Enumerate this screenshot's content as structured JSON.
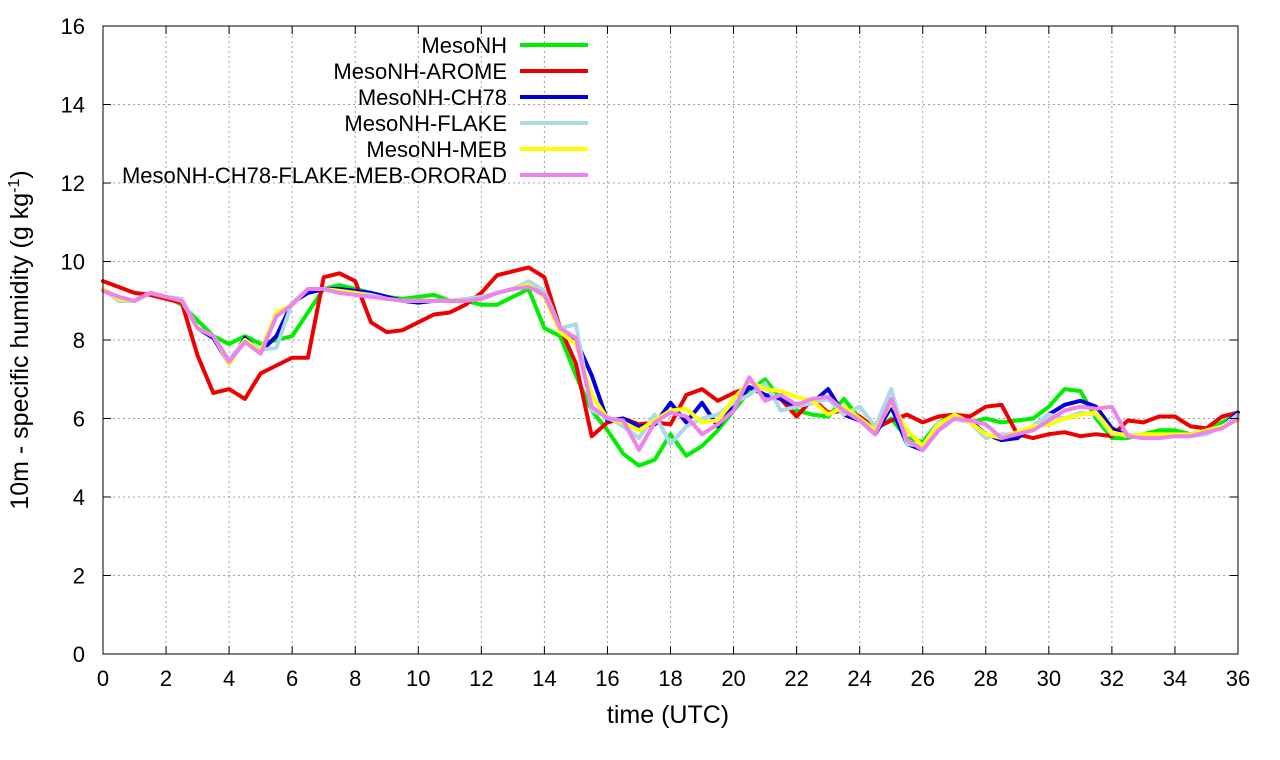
{
  "chart_data": {
    "type": "line",
    "title": "",
    "xlabel": "time (UTC)",
    "ylabel_main": "10m - specific humidity (g kg",
    "ylabel_sup": "-1",
    "ylabel_close": ")",
    "xlim": [
      0,
      36
    ],
    "ylim": [
      0,
      16
    ],
    "xticks": [
      0,
      2,
      4,
      6,
      8,
      10,
      12,
      14,
      16,
      18,
      20,
      22,
      24,
      26,
      28,
      30,
      32,
      34,
      36
    ],
    "yticks": [
      0,
      2,
      4,
      6,
      8,
      10,
      12,
      14,
      16
    ],
    "grid": true,
    "legend_position": "top-left",
    "series": [
      {
        "name": "MesoNH",
        "color": "#00ee00",
        "x": [
          0,
          0.5,
          1,
          1.5,
          2,
          2.5,
          3,
          3.5,
          4,
          4.5,
          5,
          5.5,
          6,
          6.5,
          7,
          7.5,
          8,
          8.5,
          9,
          9.5,
          10,
          10.5,
          11,
          11.5,
          12,
          12.5,
          13,
          13.5,
          14,
          14.5,
          15,
          15.5,
          16,
          16.5,
          17,
          17.5,
          18,
          18.5,
          19,
          19.5,
          20,
          20.5,
          21,
          21.5,
          22,
          22.5,
          23,
          23.5,
          24,
          24.5,
          25,
          25.5,
          26,
          26.5,
          27,
          27.5,
          28,
          28.5,
          29,
          29.5,
          30,
          30.5,
          31,
          31.5,
          32,
          32.5,
          33,
          33.5,
          34,
          34.5,
          35,
          35.5,
          36
        ],
        "values": [
          9.3,
          9.0,
          9.0,
          9.2,
          9.1,
          8.9,
          8.5,
          8.1,
          7.9,
          8.1,
          7.9,
          8.0,
          8.1,
          8.7,
          9.3,
          9.4,
          9.3,
          9.2,
          9.1,
          9.05,
          9.1,
          9.15,
          9.0,
          9.0,
          8.9,
          8.9,
          9.1,
          9.3,
          8.3,
          8.1,
          7.1,
          6.2,
          5.7,
          5.1,
          4.8,
          4.95,
          5.6,
          5.05,
          5.3,
          5.7,
          6.2,
          6.7,
          7.0,
          6.5,
          6.2,
          6.1,
          6.05,
          6.5,
          6.0,
          5.7,
          6.0,
          5.5,
          5.4,
          5.9,
          6.1,
          5.9,
          6.0,
          5.9,
          5.95,
          6.0,
          6.3,
          6.75,
          6.7,
          6.0,
          5.5,
          5.5,
          5.6,
          5.7,
          5.7,
          5.6,
          5.7,
          5.9,
          6.1
        ]
      },
      {
        "name": "MesoNH-AROME",
        "color": "#ee0000",
        "x": [
          0,
          0.5,
          1,
          1.5,
          2,
          2.5,
          3,
          3.5,
          4,
          4.5,
          5,
          5.5,
          6,
          6.5,
          7,
          7.5,
          8,
          8.5,
          9,
          9.5,
          10,
          10.5,
          11,
          11.5,
          12,
          12.5,
          13,
          13.5,
          14,
          14.5,
          15,
          15.5,
          16,
          16.5,
          17,
          17.5,
          18,
          18.5,
          19,
          19.5,
          20,
          20.5,
          21,
          21.5,
          22,
          22.5,
          23,
          23.5,
          24,
          24.5,
          25,
          25.5,
          26,
          26.5,
          27,
          27.5,
          28,
          28.5,
          29,
          29.5,
          30,
          30.5,
          31,
          31.5,
          32,
          32.5,
          33,
          33.5,
          34,
          34.5,
          35,
          35.5,
          36
        ],
        "values": [
          9.5,
          9.35,
          9.2,
          9.15,
          9.05,
          8.95,
          7.6,
          6.65,
          6.75,
          6.5,
          7.15,
          7.35,
          7.55,
          7.55,
          9.6,
          9.7,
          9.5,
          8.45,
          8.2,
          8.25,
          8.45,
          8.65,
          8.7,
          8.9,
          9.2,
          9.65,
          9.75,
          9.85,
          9.6,
          8.3,
          7.4,
          5.55,
          5.9,
          6.0,
          5.85,
          5.9,
          5.85,
          6.6,
          6.75,
          6.45,
          6.65,
          6.8,
          6.6,
          6.5,
          6.05,
          6.5,
          6.15,
          6.2,
          6.05,
          5.75,
          5.95,
          6.1,
          5.9,
          6.05,
          6.1,
          6.05,
          6.3,
          6.35,
          5.6,
          5.5,
          5.6,
          5.65,
          5.55,
          5.6,
          5.55,
          5.95,
          5.9,
          6.05,
          6.05,
          5.8,
          5.75,
          6.05,
          6.15
        ]
      },
      {
        "name": "MesoNH-CH78",
        "color": "#0000dd",
        "x": [
          0,
          0.5,
          1,
          1.5,
          2,
          2.5,
          3,
          3.5,
          4,
          4.5,
          5,
          5.5,
          6,
          6.5,
          7,
          7.5,
          8,
          8.5,
          9,
          9.5,
          10,
          10.5,
          11,
          11.5,
          12,
          12.5,
          13,
          13.5,
          14,
          14.5,
          15,
          15.5,
          16,
          16.5,
          17,
          17.5,
          18,
          18.5,
          19,
          19.5,
          20,
          20.5,
          21,
          21.5,
          22,
          22.5,
          23,
          23.5,
          24,
          24.5,
          25,
          25.5,
          26,
          26.5,
          27,
          27.5,
          28,
          28.5,
          29,
          29.5,
          30,
          30.5,
          31,
          31.5,
          32,
          32.5,
          33,
          33.5,
          34,
          34.5,
          35,
          35.5,
          36
        ],
        "values": [
          9.3,
          9.05,
          9.0,
          9.2,
          9.1,
          9.0,
          8.3,
          8.05,
          7.4,
          8.05,
          7.7,
          8.1,
          8.95,
          9.2,
          9.3,
          9.3,
          9.25,
          9.2,
          9.1,
          9.0,
          8.95,
          9.0,
          9.0,
          9.0,
          9.05,
          9.2,
          9.3,
          9.4,
          9.2,
          8.3,
          8.0,
          7.1,
          5.95,
          6.0,
          5.8,
          5.85,
          6.4,
          5.9,
          6.4,
          5.8,
          6.3,
          6.8,
          6.6,
          6.5,
          6.3,
          6.4,
          6.75,
          6.1,
          5.95,
          5.6,
          6.3,
          5.35,
          5.2,
          5.7,
          6.0,
          5.95,
          5.6,
          5.45,
          5.5,
          5.8,
          6.1,
          6.35,
          6.45,
          6.3,
          5.75,
          5.55,
          5.55,
          5.6,
          5.6,
          5.6,
          5.65,
          5.8,
          6.15
        ]
      },
      {
        "name": "MesoNH-FLAKE",
        "color": "#add8e6",
        "x": [
          0,
          0.5,
          1,
          1.5,
          2,
          2.5,
          3,
          3.5,
          4,
          4.5,
          5,
          5.5,
          6,
          6.5,
          7,
          7.5,
          8,
          8.5,
          9,
          9.5,
          10,
          10.5,
          11,
          11.5,
          12,
          12.5,
          13,
          13.5,
          14,
          14.5,
          15,
          15.5,
          16,
          16.5,
          17,
          17.5,
          18,
          18.5,
          19,
          19.5,
          20,
          20.5,
          21,
          21.5,
          22,
          22.5,
          23,
          23.5,
          24,
          24.5,
          25,
          25.5,
          26,
          26.5,
          27,
          27.5,
          28,
          28.5,
          29,
          29.5,
          30,
          30.5,
          31,
          31.5,
          32,
          32.5,
          33,
          33.5,
          34,
          34.5,
          35,
          35.5,
          36
        ],
        "values": [
          9.3,
          9.0,
          9.0,
          9.2,
          9.1,
          9.05,
          8.3,
          8.1,
          7.5,
          8.0,
          7.75,
          7.8,
          8.95,
          9.3,
          9.3,
          9.25,
          9.2,
          9.15,
          9.05,
          9.0,
          9.0,
          9.0,
          9.0,
          9.05,
          9.1,
          9.2,
          9.3,
          9.5,
          9.25,
          8.3,
          8.4,
          6.2,
          6.05,
          5.8,
          5.5,
          6.1,
          5.35,
          5.8,
          6.0,
          6.1,
          6.4,
          6.6,
          6.9,
          6.2,
          6.3,
          6.4,
          6.5,
          6.1,
          6.3,
          5.8,
          6.75,
          5.35,
          5.3,
          5.9,
          6.0,
          5.9,
          5.5,
          5.6,
          5.6,
          5.8,
          6.1,
          6.0,
          6.15,
          6.1,
          5.6,
          5.6,
          5.55,
          5.6,
          5.55,
          5.55,
          5.6,
          5.8,
          6.1
        ]
      },
      {
        "name": "MesoNH-MEB",
        "color": "#ffff00",
        "x": [
          0,
          0.5,
          1,
          1.5,
          2,
          2.5,
          3,
          3.5,
          4,
          4.5,
          5,
          5.5,
          6,
          6.5,
          7,
          7.5,
          8,
          8.5,
          9,
          9.5,
          10,
          10.5,
          11,
          11.5,
          12,
          12.5,
          13,
          13.5,
          14,
          14.5,
          15,
          15.5,
          16,
          16.5,
          17,
          17.5,
          18,
          18.5,
          19,
          19.5,
          20,
          20.5,
          21,
          21.5,
          22,
          22.5,
          23,
          23.5,
          24,
          24.5,
          25,
          25.5,
          26,
          26.5,
          27,
          27.5,
          28,
          28.5,
          29,
          29.5,
          30,
          30.5,
          31,
          31.5,
          32,
          32.5,
          33,
          33.5,
          34,
          34.5,
          35,
          35.5,
          36
        ],
        "values": [
          9.3,
          9.05,
          9.0,
          9.2,
          9.1,
          9.0,
          8.3,
          8.1,
          7.4,
          8.0,
          7.7,
          8.7,
          8.9,
          9.3,
          9.3,
          9.25,
          9.2,
          9.1,
          9.05,
          9.0,
          9.0,
          9.0,
          9.0,
          9.0,
          9.05,
          9.2,
          9.3,
          9.4,
          9.1,
          8.2,
          7.9,
          6.6,
          6.0,
          5.9,
          5.7,
          5.95,
          6.2,
          6.25,
          5.9,
          5.95,
          6.5,
          6.95,
          6.75,
          6.7,
          6.55,
          6.45,
          6.1,
          6.3,
          6.0,
          5.7,
          6.4,
          5.7,
          5.3,
          5.85,
          6.1,
          5.9,
          5.6,
          5.5,
          5.65,
          5.8,
          5.85,
          6.0,
          6.1,
          6.15,
          5.65,
          5.55,
          5.6,
          5.6,
          5.6,
          5.6,
          5.7,
          5.8,
          5.95
        ]
      },
      {
        "name": "MesoNH-CH78-FLAKE-MEB-ORORAD",
        "color": "#ee82ee",
        "x": [
          0,
          0.5,
          1,
          1.5,
          2,
          2.5,
          3,
          3.5,
          4,
          4.5,
          5,
          5.5,
          6,
          6.5,
          7,
          7.5,
          8,
          8.5,
          9,
          9.5,
          10,
          10.5,
          11,
          11.5,
          12,
          12.5,
          13,
          13.5,
          14,
          14.5,
          15,
          15.5,
          16,
          16.5,
          17,
          17.5,
          18,
          18.5,
          19,
          19.5,
          20,
          20.5,
          21,
          21.5,
          22,
          22.5,
          23,
          23.5,
          24,
          24.5,
          25,
          25.5,
          26,
          26.5,
          27,
          27.5,
          28,
          28.5,
          29,
          29.5,
          30,
          30.5,
          31,
          31.5,
          32,
          32.5,
          33,
          33.5,
          34,
          34.5,
          35,
          35.5,
          36
        ],
        "values": [
          9.25,
          9.1,
          9.0,
          9.2,
          9.1,
          9.0,
          8.3,
          8.1,
          7.45,
          7.95,
          7.65,
          8.6,
          8.9,
          9.3,
          9.3,
          9.2,
          9.15,
          9.1,
          9.05,
          9.0,
          9.0,
          9.0,
          9.0,
          9.0,
          9.05,
          9.2,
          9.3,
          9.35,
          9.15,
          8.3,
          8.05,
          6.3,
          6.0,
          5.95,
          5.2,
          5.9,
          6.15,
          6.05,
          5.6,
          5.85,
          6.2,
          7.05,
          6.45,
          6.6,
          6.35,
          6.5,
          6.55,
          6.2,
          5.95,
          5.6,
          6.5,
          5.45,
          5.2,
          5.7,
          6.0,
          5.95,
          5.85,
          5.5,
          5.6,
          5.7,
          5.95,
          6.2,
          6.3,
          6.25,
          6.3,
          5.55,
          5.5,
          5.5,
          5.55,
          5.55,
          5.65,
          5.75,
          6.0
        ]
      }
    ]
  }
}
